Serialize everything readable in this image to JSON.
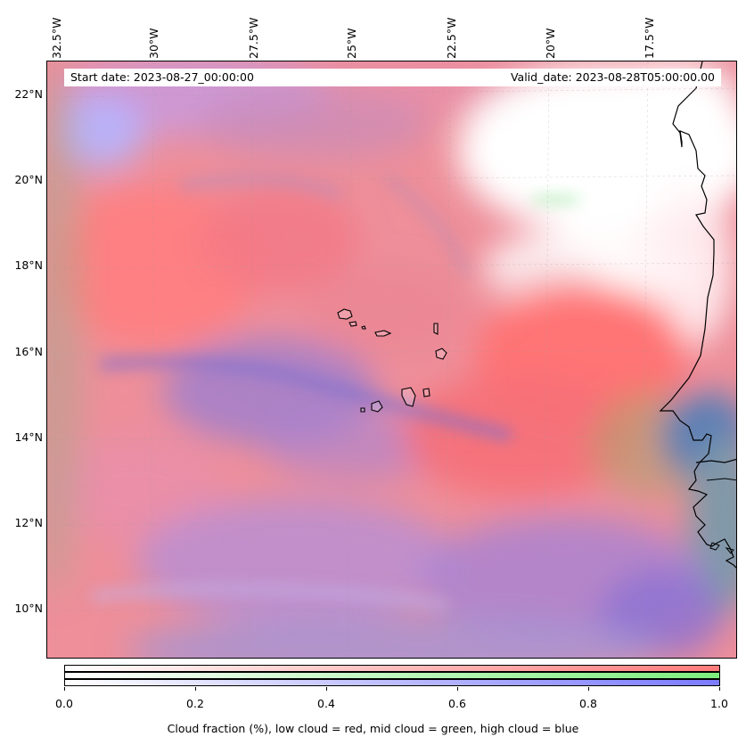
{
  "map": {
    "start_date": "Start date: 2023-08-27_00:00:00",
    "valid_date": "Valid_date: 2023-08-28T05:00:00.00",
    "lon_labels": [
      "32.5°W",
      "30°W",
      "27.5°W",
      "25°W",
      "22.5°W",
      "20°W",
      "17.5°W"
    ],
    "lat_labels": [
      "22°N",
      "20°N",
      "18°N",
      "16°N",
      "14°N",
      "12°N",
      "10°N"
    ],
    "colors": {
      "low_cloud": "#ff7b7b",
      "mid_cloud": "#7dee7d",
      "high_cloud": "#7b7bff",
      "coast": "#000000"
    }
  },
  "colorbar": {
    "ticks": [
      "0.0",
      "0.2",
      "0.4",
      "0.6",
      "0.8",
      "1.0"
    ],
    "label": "Cloud fraction (%), low cloud = red, mid cloud = green, high cloud = blue"
  }
}
